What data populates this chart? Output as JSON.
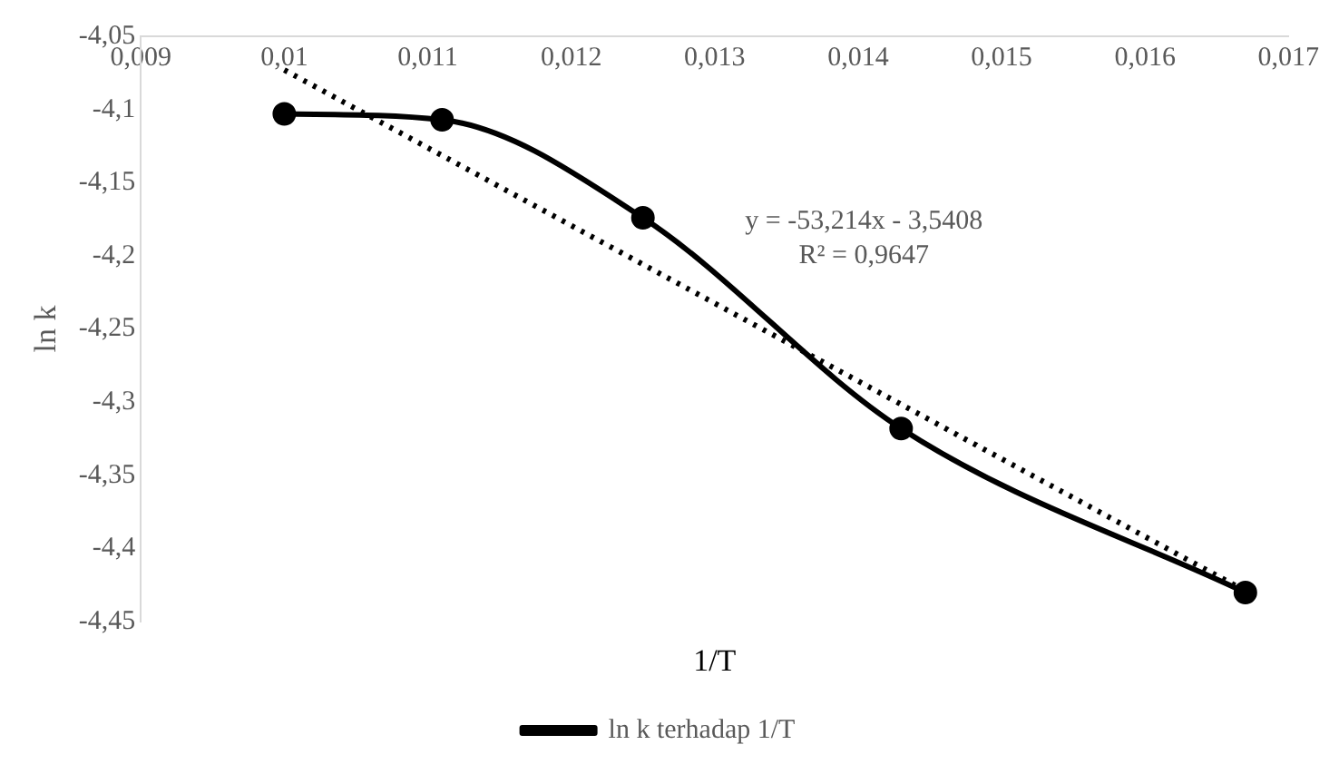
{
  "chart_data": {
    "type": "line",
    "xlabel": "1/T",
    "ylabel": "ln k",
    "xlim": [
      0.009,
      0.017
    ],
    "xticks": [
      {
        "value": 0.009,
        "label": "0,009"
      },
      {
        "value": 0.01,
        "label": "0,01"
      },
      {
        "value": 0.011,
        "label": "0,011"
      },
      {
        "value": 0.012,
        "label": "0,012"
      },
      {
        "value": 0.013,
        "label": "0,013"
      },
      {
        "value": 0.014,
        "label": "0,014"
      },
      {
        "value": 0.015,
        "label": "0,015"
      },
      {
        "value": 0.016,
        "label": "0,016"
      },
      {
        "value": 0.017,
        "label": "0,017"
      }
    ],
    "ylim": [
      -4.45,
      -4.05
    ],
    "yticks": [
      {
        "value": -4.45,
        "label": "-4,45"
      },
      {
        "value": -4.4,
        "label": "-4,4"
      },
      {
        "value": -4.35,
        "label": "-4,35"
      },
      {
        "value": -4.3,
        "label": "-4,3"
      },
      {
        "value": -4.25,
        "label": "-4,25"
      },
      {
        "value": -4.2,
        "label": "-4,2"
      },
      {
        "value": -4.15,
        "label": "-4,15"
      },
      {
        "value": -4.1,
        "label": "-4,1"
      },
      {
        "value": -4.05,
        "label": "-4,05"
      }
    ],
    "series": [
      {
        "name": "ln k terhadap 1/T",
        "color": "#000000",
        "marker": "circle",
        "line_style": "solid",
        "x": [
          0.01,
          0.0111,
          0.0125,
          0.0143,
          0.0167
        ],
        "values": [
          -4.103,
          -4.107,
          -4.174,
          -4.318,
          -4.43
        ]
      },
      {
        "color": "#000000",
        "marker": "none",
        "line_style": "dotted",
        "x": [
          0.01,
          0.0167
        ],
        "values": [
          -4.073,
          -4.429
        ]
      }
    ],
    "annotations": [
      "y = -53,214x - 3,5408",
      "R² = 0,9647"
    ],
    "grid": false,
    "legend": "bottom"
  }
}
